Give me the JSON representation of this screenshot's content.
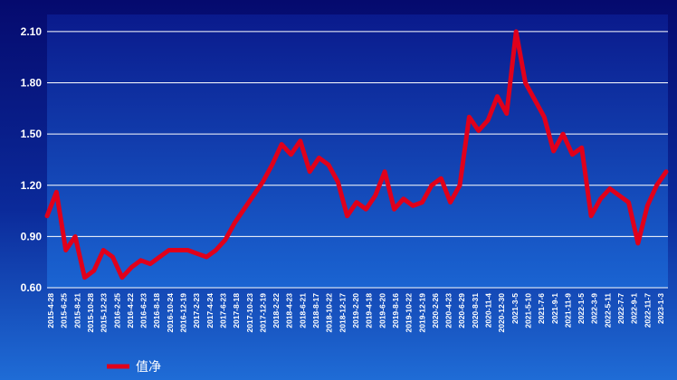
{
  "chart_data": {
    "type": "line",
    "title": "",
    "xlabel": "",
    "ylabel": "",
    "ylim": [
      0.6,
      2.2
    ],
    "y_ticks": [
      "0.60",
      "0.90",
      "1.20",
      "1.50",
      "1.80",
      "2.10"
    ],
    "grid": true,
    "legend_placement": "bottom-left",
    "colors": {
      "series": "#e0001b",
      "plot_bg_top": "#0a1a8c",
      "plot_bg_bottom": "#1a64d2",
      "gridline": "#ffffff"
    },
    "x_tick_labels": [
      "2015-4-28",
      "2015-6-25",
      "2015-8-21",
      "2015-10-28",
      "2015-12-23",
      "2016-2-25",
      "2016-4-22",
      "2016-6-23",
      "2016-8-18",
      "2016-10-24",
      "2016-12-19",
      "2017-2-23",
      "2017-4-24",
      "2017-6-23",
      "2017-8-18",
      "2017-10-23",
      "2017-12-19",
      "2018-2-22",
      "2018-4-23",
      "2018-6-21",
      "2018-8-17",
      "2018-10-22",
      "2018-12-17",
      "2019-2-20",
      "2019-4-18",
      "2019-6-20",
      "2019-8-16",
      "2019-10-22",
      "2019-12-19",
      "2020-2-26",
      "2020-4-23",
      "2020-6-29",
      "2020-8-31",
      "2020-11-4",
      "2020-12-30",
      "2021-3-5",
      "2021-5-10",
      "2021-7-6",
      "2021-9-1",
      "2021-11-9",
      "2022-1-5",
      "2022-3-9",
      "2022-5-11",
      "2022-7-7",
      "2022-9-1",
      "2022-11-7",
      "2023-1-3"
    ],
    "series": [
      {
        "name": "值净",
        "values": [
          1.02,
          1.16,
          0.82,
          0.9,
          0.66,
          0.7,
          0.82,
          0.78,
          0.66,
          0.72,
          0.76,
          0.74,
          0.78,
          0.82,
          0.82,
          0.82,
          0.8,
          0.78,
          0.82,
          0.88,
          0.98,
          1.06,
          1.14,
          1.22,
          1.32,
          1.44,
          1.38,
          1.46,
          1.28,
          1.36,
          1.32,
          1.22,
          1.02,
          1.1,
          1.06,
          1.14,
          1.28,
          1.06,
          1.12,
          1.08,
          1.1,
          1.2,
          1.24,
          1.1,
          1.2,
          1.6,
          1.52,
          1.58,
          1.72,
          1.62,
          2.1,
          1.8,
          1.7,
          1.6,
          1.4,
          1.5,
          1.38,
          1.42,
          1.02,
          1.12,
          1.18,
          1.14,
          1.1,
          0.86,
          1.08,
          1.2,
          1.28
        ]
      }
    ]
  }
}
